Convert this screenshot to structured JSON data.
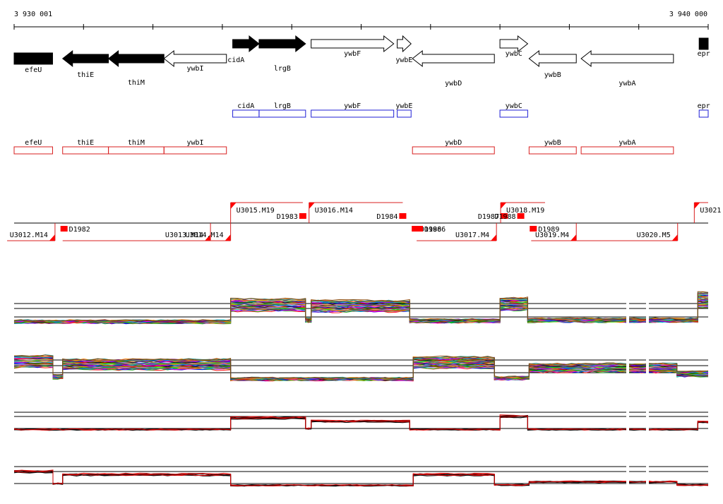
{
  "ruler": {
    "start_label": "3 930 001",
    "end_label": "3 940 000",
    "start": 3930001,
    "end": 3940000
  },
  "genes": [
    {
      "name": "efeU",
      "strand": "-",
      "filled": true,
      "start": 3930001,
      "end": 3930555
    },
    {
      "name": "thiE",
      "strand": "-",
      "filled": true,
      "start": 3930700,
      "end": 3931360
    },
    {
      "name": "thiM",
      "strand": "-",
      "filled": true,
      "start": 3931360,
      "end": 3932160
    },
    {
      "name": "ywbI",
      "strand": "-",
      "filled": false,
      "start": 3932160,
      "end": 3933060
    },
    {
      "name": "cidA",
      "strand": "+",
      "filled": true,
      "start": 3933150,
      "end": 3933530
    },
    {
      "name": "lrgB",
      "strand": "+",
      "filled": true,
      "start": 3933530,
      "end": 3934200
    },
    {
      "name": "ywbF",
      "strand": "+",
      "filled": false,
      "start": 3934280,
      "end": 3935470
    },
    {
      "name": "ywbE",
      "strand": "+",
      "filled": false,
      "start": 3935520,
      "end": 3935720
    },
    {
      "name": "ywbD",
      "strand": "-",
      "filled": false,
      "start": 3935740,
      "end": 3936920
    },
    {
      "name": "ywbC",
      "strand": "+",
      "filled": false,
      "start": 3937000,
      "end": 3937400
    },
    {
      "name": "ywbB",
      "strand": "-",
      "filled": false,
      "start": 3937420,
      "end": 3938100
    },
    {
      "name": "ywbA",
      "strand": "-",
      "filled": false,
      "start": 3938170,
      "end": 3939500
    },
    {
      "name": "epr",
      "strand": "+",
      "filled": true,
      "start": 3939870,
      "end": 3940000
    }
  ],
  "plus_boxes": [
    {
      "name": "cidA",
      "start": 3933150,
      "end": 3933530
    },
    {
      "name": "lrgB",
      "start": 3933530,
      "end": 3934200
    },
    {
      "name": "ywbF",
      "start": 3934280,
      "end": 3935470
    },
    {
      "name": "ywbE",
      "start": 3935520,
      "end": 3935720
    },
    {
      "name": "ywbC",
      "start": 3937000,
      "end": 3937400
    },
    {
      "name": "epr",
      "start": 3939870,
      "end": 3940000
    }
  ],
  "minus_boxes": [
    {
      "name": "efeU",
      "start": 3930001,
      "end": 3930555
    },
    {
      "name": "thiE",
      "start": 3930700,
      "end": 3931360
    },
    {
      "name": "thiM",
      "start": 3931360,
      "end": 3932160
    },
    {
      "name": "ywbI",
      "start": 3932160,
      "end": 3933060
    },
    {
      "name": "ywbD",
      "start": 3935740,
      "end": 3936920
    },
    {
      "name": "ywbB",
      "start": 3937420,
      "end": 3938100
    },
    {
      "name": "ywbA",
      "start": 3938170,
      "end": 3939500
    }
  ],
  "upper_tus": [
    {
      "name": "U3015.M19",
      "start": 3933120,
      "end": 3934160
    },
    {
      "name": "U3016.M14",
      "start": 3934250,
      "end": 3935600
    },
    {
      "name": "U3018.M19",
      "start": 3937010,
      "end": 3937650
    },
    {
      "name": "U3021",
      "start": 3939800,
      "end": 3940000
    }
  ],
  "lower_tus": [
    {
      "name": "U3012.M14",
      "start": 3929900,
      "end": 3930590
    },
    {
      "name": "U3013.M14",
      "start": 3930700,
      "end": 3932830
    },
    {
      "name": "U3014.M14",
      "start": 3932300,
      "end": 3933120
    },
    {
      "name": "U3017.M4",
      "start": 3935800,
      "end": 3936950
    },
    {
      "name": "U3019.M4",
      "start": 3937450,
      "end": 3938100
    },
    {
      "name": "U3020.M5",
      "start": 3938100,
      "end": 3939560
    }
  ],
  "promoters": [
    {
      "name": "D1982",
      "pos": 3930720,
      "strand": "-"
    },
    {
      "name": "D1983",
      "pos": 3934160,
      "strand": "+"
    },
    {
      "name": "D1984",
      "pos": 3935600,
      "strand": "+"
    },
    {
      "name": "D1986",
      "pos": 3935780,
      "strand": "-"
    },
    {
      "name": "D1986",
      "pos": 3935840,
      "strand": "-"
    },
    {
      "name": "D1987",
      "pos": 3937060,
      "strand": "+"
    },
    {
      "name": "D1988",
      "pos": 3937300,
      "strand": "+"
    },
    {
      "name": "D1989",
      "pos": 3937480,
      "strand": "-"
    }
  ],
  "expression_panels": [
    {
      "name": "plus-strand-all-conditions",
      "levels": [
        {
          "start": 3930001,
          "end": 3933120,
          "value": 0.15
        },
        {
          "start": 3933120,
          "end": 3934200,
          "value": 0.72
        },
        {
          "start": 3934200,
          "end": 3934280,
          "value": 0.2
        },
        {
          "start": 3934280,
          "end": 3935700,
          "value": 0.68
        },
        {
          "start": 3935700,
          "end": 3937000,
          "value": 0.18
        },
        {
          "start": 3937000,
          "end": 3937400,
          "value": 0.75
        },
        {
          "start": 3937400,
          "end": 3939850,
          "value": 0.2
        },
        {
          "start": 3939850,
          "end": 3940000,
          "value": 0.9
        }
      ]
    },
    {
      "name": "minus-strand-all-conditions",
      "levels": [
        {
          "start": 3930001,
          "end": 3930560,
          "value": 0.72
        },
        {
          "start": 3930560,
          "end": 3930700,
          "value": 0.2
        },
        {
          "start": 3930700,
          "end": 3933120,
          "value": 0.62
        },
        {
          "start": 3933120,
          "end": 3935750,
          "value": 0.12
        },
        {
          "start": 3935750,
          "end": 3936920,
          "value": 0.68
        },
        {
          "start": 3936920,
          "end": 3937420,
          "value": 0.15
        },
        {
          "start": 3937420,
          "end": 3939550,
          "value": 0.5
        },
        {
          "start": 3939550,
          "end": 3940000,
          "value": 0.3
        }
      ]
    },
    {
      "name": "plus-strand-selected",
      "levels": [
        {
          "start": 3930001,
          "end": 3933120,
          "value": 0.15
        },
        {
          "start": 3933120,
          "end": 3934200,
          "value": 0.85
        },
        {
          "start": 3934200,
          "end": 3934280,
          "value": 0.2
        },
        {
          "start": 3934280,
          "end": 3935700,
          "value": 0.65
        },
        {
          "start": 3935700,
          "end": 3937000,
          "value": 0.15
        },
        {
          "start": 3937000,
          "end": 3937400,
          "value": 0.95
        },
        {
          "start": 3937400,
          "end": 3939850,
          "value": 0.15
        },
        {
          "start": 3939850,
          "end": 3940000,
          "value": 0.6
        }
      ]
    },
    {
      "name": "minus-strand-selected",
      "levels": [
        {
          "start": 3930001,
          "end": 3930560,
          "value": 0.9
        },
        {
          "start": 3930560,
          "end": 3930700,
          "value": 0.2
        },
        {
          "start": 3930700,
          "end": 3933120,
          "value": 0.72
        },
        {
          "start": 3933120,
          "end": 3935750,
          "value": 0.1
        },
        {
          "start": 3935750,
          "end": 3936920,
          "value": 0.72
        },
        {
          "start": 3936920,
          "end": 3937420,
          "value": 0.12
        },
        {
          "start": 3937420,
          "end": 3939550,
          "value": 0.3
        },
        {
          "start": 3939550,
          "end": 3940000,
          "value": 0.12
        }
      ]
    }
  ],
  "colors": {
    "gene_fill": "#000000",
    "plus_box": "#1f1fd6",
    "minus_box": "#d81f1f",
    "tu_line": "#d81f1f",
    "promoter": "#ff0000",
    "axis": "#000000",
    "guide_line": "#000000",
    "selected_line_a": "#000000",
    "selected_line_b": "#e00000"
  }
}
